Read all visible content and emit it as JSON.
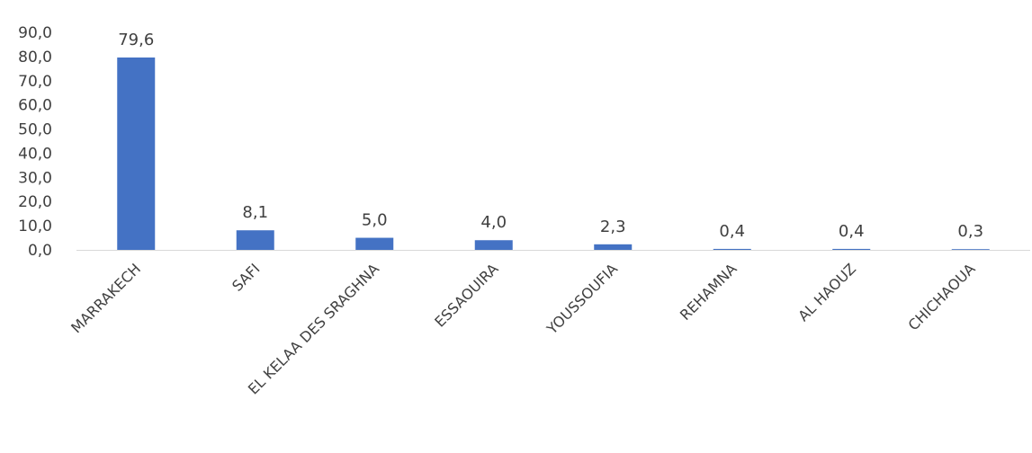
{
  "chart_data": {
    "type": "bar",
    "categories": [
      "MARRAKECH",
      "SAFI",
      "EL KELAA DES SRAGHNA",
      "ESSAOUIRA",
      "YOUSSOUFIA",
      "REHAMNA",
      "AL HAOUZ",
      "CHICHAOUA"
    ],
    "values": [
      79.6,
      8.1,
      5.0,
      4.0,
      2.3,
      0.4,
      0.4,
      0.3
    ],
    "data_labels": [
      "79,6",
      "8,1",
      "5,0",
      "4,0",
      "2,3",
      "0,4",
      "0,4",
      "0,3"
    ],
    "y_ticks": [
      0,
      10,
      20,
      30,
      40,
      50,
      60,
      70,
      80,
      90
    ],
    "y_tick_labels": [
      "0,0",
      "10,0",
      "20,0",
      "30,0",
      "40,0",
      "50,0",
      "60,0",
      "70,0",
      "80,0",
      "90,0"
    ],
    "ylim": [
      0,
      90
    ],
    "title": "",
    "xlabel": "",
    "ylabel": "",
    "grid": false,
    "legend": "none",
    "bar_color": "#4472C4",
    "axis_color": "#D9D9D9"
  }
}
